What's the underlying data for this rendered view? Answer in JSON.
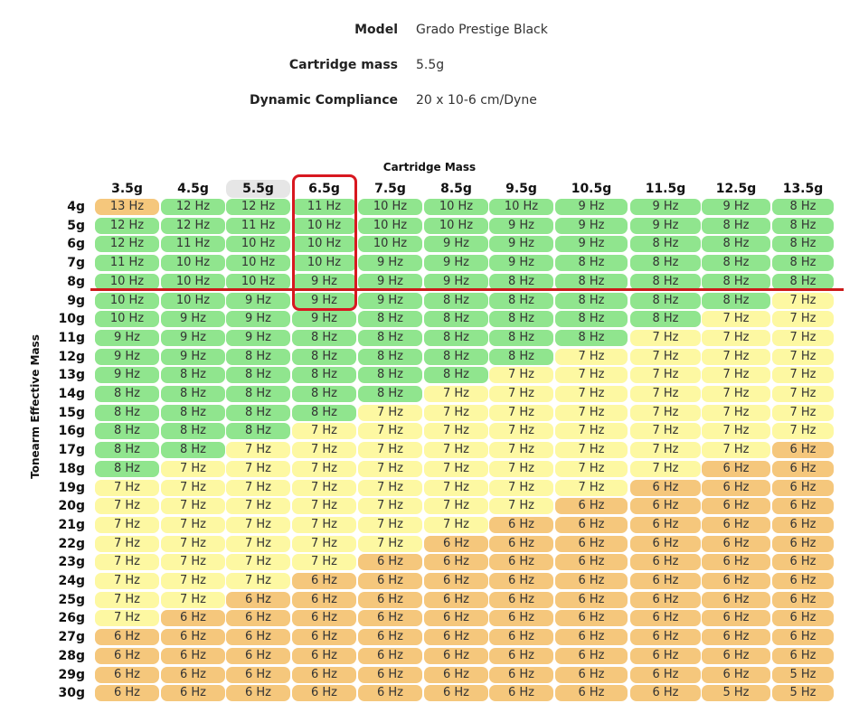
{
  "specs": {
    "model_label": "Model",
    "model_value": "Grado Prestige Black",
    "mass_label": "Cartridge mass",
    "mass_value": "5.5g",
    "compliance_label": "Dynamic Compliance",
    "compliance_value": "20 x 10-6 cm/Dyne"
  },
  "table": {
    "col_axis_title": "Cartridge Mass",
    "row_axis_title": "Tonearm Effective Mass",
    "columns": [
      "3.5g",
      "4.5g",
      "5.5g",
      "6.5g",
      "7.5g",
      "8.5g",
      "9.5g",
      "10.5g",
      "11.5g",
      "12.5g",
      "13.5g"
    ],
    "selected_column": "5.5g",
    "highlighted_column": "6.5g",
    "highlighted_row_boundary": "8g",
    "rows": [
      {
        "label": "4g",
        "values": [
          "13 Hz",
          "12 Hz",
          "12 Hz",
          "11 Hz",
          "10 Hz",
          "10 Hz",
          "10 Hz",
          "9 Hz",
          "9 Hz",
          "9 Hz",
          "8 Hz"
        ]
      },
      {
        "label": "5g",
        "values": [
          "12 Hz",
          "12 Hz",
          "11 Hz",
          "10 Hz",
          "10 Hz",
          "10 Hz",
          "9 Hz",
          "9 Hz",
          "9 Hz",
          "8 Hz",
          "8 Hz"
        ]
      },
      {
        "label": "6g",
        "values": [
          "12 Hz",
          "11 Hz",
          "10 Hz",
          "10 Hz",
          "10 Hz",
          "9 Hz",
          "9 Hz",
          "9 Hz",
          "8 Hz",
          "8 Hz",
          "8 Hz"
        ]
      },
      {
        "label": "7g",
        "values": [
          "11 Hz",
          "10 Hz",
          "10 Hz",
          "10 Hz",
          "9 Hz",
          "9 Hz",
          "9 Hz",
          "8 Hz",
          "8 Hz",
          "8 Hz",
          "8 Hz"
        ]
      },
      {
        "label": "8g",
        "values": [
          "10 Hz",
          "10 Hz",
          "10 Hz",
          "9 Hz",
          "9 Hz",
          "9 Hz",
          "8 Hz",
          "8 Hz",
          "8 Hz",
          "8 Hz",
          "8 Hz"
        ]
      },
      {
        "label": "9g",
        "values": [
          "10 Hz",
          "10 Hz",
          "9 Hz",
          "9 Hz",
          "9 Hz",
          "8 Hz",
          "8 Hz",
          "8 Hz",
          "8 Hz",
          "8 Hz",
          "7 Hz"
        ]
      },
      {
        "label": "10g",
        "values": [
          "10 Hz",
          "9 Hz",
          "9 Hz",
          "9 Hz",
          "8 Hz",
          "8 Hz",
          "8 Hz",
          "8 Hz",
          "8 Hz",
          "7 Hz",
          "7 Hz"
        ]
      },
      {
        "label": "11g",
        "values": [
          "9 Hz",
          "9 Hz",
          "9 Hz",
          "8 Hz",
          "8 Hz",
          "8 Hz",
          "8 Hz",
          "8 Hz",
          "7 Hz",
          "7 Hz",
          "7 Hz"
        ]
      },
      {
        "label": "12g",
        "values": [
          "9 Hz",
          "9 Hz",
          "8 Hz",
          "8 Hz",
          "8 Hz",
          "8 Hz",
          "8 Hz",
          "7 Hz",
          "7 Hz",
          "7 Hz",
          "7 Hz"
        ]
      },
      {
        "label": "13g",
        "values": [
          "9 Hz",
          "8 Hz",
          "8 Hz",
          "8 Hz",
          "8 Hz",
          "8 Hz",
          "7 Hz",
          "7 Hz",
          "7 Hz",
          "7 Hz",
          "7 Hz"
        ]
      },
      {
        "label": "14g",
        "values": [
          "8 Hz",
          "8 Hz",
          "8 Hz",
          "8 Hz",
          "8 Hz",
          "7 Hz",
          "7 Hz",
          "7 Hz",
          "7 Hz",
          "7 Hz",
          "7 Hz"
        ]
      },
      {
        "label": "15g",
        "values": [
          "8 Hz",
          "8 Hz",
          "8 Hz",
          "8 Hz",
          "7 Hz",
          "7 Hz",
          "7 Hz",
          "7 Hz",
          "7 Hz",
          "7 Hz",
          "7 Hz"
        ]
      },
      {
        "label": "16g",
        "values": [
          "8 Hz",
          "8 Hz",
          "8 Hz",
          "7 Hz",
          "7 Hz",
          "7 Hz",
          "7 Hz",
          "7 Hz",
          "7 Hz",
          "7 Hz",
          "7 Hz"
        ]
      },
      {
        "label": "17g",
        "values": [
          "8 Hz",
          "8 Hz",
          "7 Hz",
          "7 Hz",
          "7 Hz",
          "7 Hz",
          "7 Hz",
          "7 Hz",
          "7 Hz",
          "7 Hz",
          "6 Hz"
        ]
      },
      {
        "label": "18g",
        "values": [
          "8 Hz",
          "7 Hz",
          "7 Hz",
          "7 Hz",
          "7 Hz",
          "7 Hz",
          "7 Hz",
          "7 Hz",
          "7 Hz",
          "6 Hz",
          "6 Hz"
        ]
      },
      {
        "label": "19g",
        "values": [
          "7 Hz",
          "7 Hz",
          "7 Hz",
          "7 Hz",
          "7 Hz",
          "7 Hz",
          "7 Hz",
          "7 Hz",
          "6 Hz",
          "6 Hz",
          "6 Hz"
        ]
      },
      {
        "label": "20g",
        "values": [
          "7 Hz",
          "7 Hz",
          "7 Hz",
          "7 Hz",
          "7 Hz",
          "7 Hz",
          "7 Hz",
          "6 Hz",
          "6 Hz",
          "6 Hz",
          "6 Hz"
        ]
      },
      {
        "label": "21g",
        "values": [
          "7 Hz",
          "7 Hz",
          "7 Hz",
          "7 Hz",
          "7 Hz",
          "7 Hz",
          "6 Hz",
          "6 Hz",
          "6 Hz",
          "6 Hz",
          "6 Hz"
        ]
      },
      {
        "label": "22g",
        "values": [
          "7 Hz",
          "7 Hz",
          "7 Hz",
          "7 Hz",
          "7 Hz",
          "6 Hz",
          "6 Hz",
          "6 Hz",
          "6 Hz",
          "6 Hz",
          "6 Hz"
        ]
      },
      {
        "label": "23g",
        "values": [
          "7 Hz",
          "7 Hz",
          "7 Hz",
          "7 Hz",
          "6 Hz",
          "6 Hz",
          "6 Hz",
          "6 Hz",
          "6 Hz",
          "6 Hz",
          "6 Hz"
        ]
      },
      {
        "label": "24g",
        "values": [
          "7 Hz",
          "7 Hz",
          "7 Hz",
          "6 Hz",
          "6 Hz",
          "6 Hz",
          "6 Hz",
          "6 Hz",
          "6 Hz",
          "6 Hz",
          "6 Hz"
        ]
      },
      {
        "label": "25g",
        "values": [
          "7 Hz",
          "7 Hz",
          "6 Hz",
          "6 Hz",
          "6 Hz",
          "6 Hz",
          "6 Hz",
          "6 Hz",
          "6 Hz",
          "6 Hz",
          "6 Hz"
        ]
      },
      {
        "label": "26g",
        "values": [
          "7 Hz",
          "6 Hz",
          "6 Hz",
          "6 Hz",
          "6 Hz",
          "6 Hz",
          "6 Hz",
          "6 Hz",
          "6 Hz",
          "6 Hz",
          "6 Hz"
        ]
      },
      {
        "label": "27g",
        "values": [
          "6 Hz",
          "6 Hz",
          "6 Hz",
          "6 Hz",
          "6 Hz",
          "6 Hz",
          "6 Hz",
          "6 Hz",
          "6 Hz",
          "6 Hz",
          "6 Hz"
        ]
      },
      {
        "label": "28g",
        "values": [
          "6 Hz",
          "6 Hz",
          "6 Hz",
          "6 Hz",
          "6 Hz",
          "6 Hz",
          "6 Hz",
          "6 Hz",
          "6 Hz",
          "6 Hz",
          "6 Hz"
        ]
      },
      {
        "label": "29g",
        "values": [
          "6 Hz",
          "6 Hz",
          "6 Hz",
          "6 Hz",
          "6 Hz",
          "6 Hz",
          "6 Hz",
          "6 Hz",
          "6 Hz",
          "6 Hz",
          "5 Hz"
        ]
      },
      {
        "label": "30g",
        "values": [
          "6 Hz",
          "6 Hz",
          "6 Hz",
          "6 Hz",
          "6 Hz",
          "6 Hz",
          "6 Hz",
          "6 Hz",
          "6 Hz",
          "5 Hz",
          "5 Hz"
        ]
      }
    ]
  },
  "colors": {
    "ideal_green": "#90e58e",
    "acceptable_yellow": "#fdf8a2",
    "out_of_range_orange": "#f5c77c",
    "highlight_red": "#d81820"
  }
}
